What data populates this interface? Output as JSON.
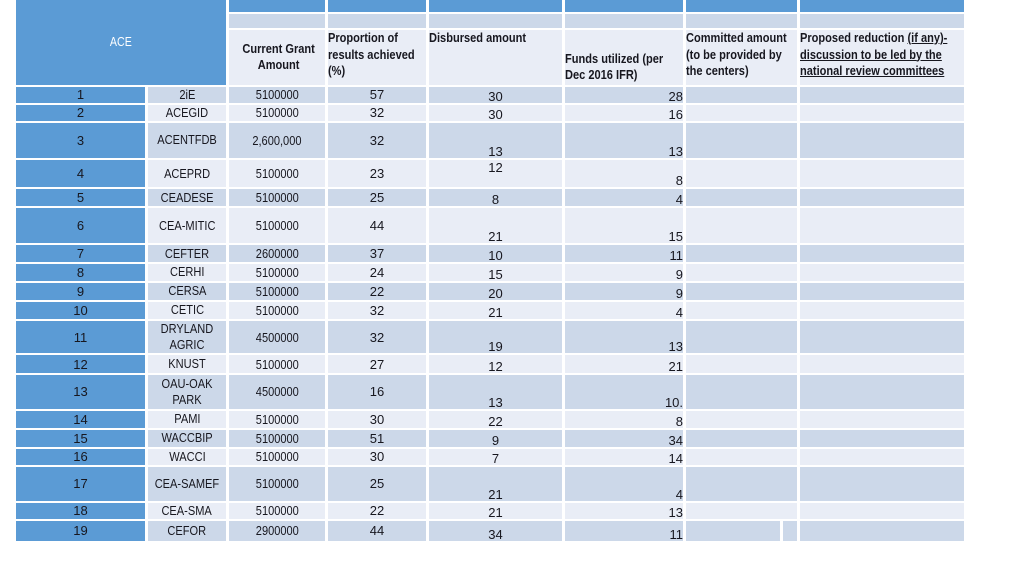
{
  "slide": {
    "background": "#ffffff"
  },
  "colors": {
    "accent_blue": "#5b9bd5",
    "band_dark": "#ccd8e9",
    "band_light": "#e9edf6",
    "border": "#ffffff",
    "text": "#17171f",
    "ace_header_text": "#ffffff"
  },
  "table": {
    "corner_header": "ACE",
    "headers": {
      "grant": "Current Grant\nAmount",
      "proportion": "Proportion of\nresults achieved\n(%)",
      "disbursed": "Disbursed amount",
      "funds": "Funds utilized (per\nDec 2016 IFR)",
      "committed": "Committed amount\n(to be provided by\nthe centers)",
      "proposed_plain": "Proposed reduction ",
      "proposed_underlined": "(if any)-\ndiscussion to be led by the\nnational review committees"
    },
    "rows": [
      {
        "num": "1",
        "num_bold": true,
        "name": "2iE",
        "grant": "5100000",
        "proportion": "57",
        "disbursed": "30",
        "disbursed_align": "bottom",
        "funds": "28",
        "funds_bold": true,
        "committed": "",
        "proposed": ""
      },
      {
        "num": "2",
        "num_bold": true,
        "name": "ACEGID",
        "grant": "5100000",
        "proportion": "32",
        "disbursed": "30",
        "disbursed_align": "bottom",
        "funds": "16",
        "funds_bold": true,
        "committed": "",
        "proposed": ""
      },
      {
        "num": "3",
        "num_bold": true,
        "name": "ACENTFDB",
        "grant": "2,600,000",
        "proportion": "32",
        "disbursed": "13",
        "disbursed_align": "bottom",
        "funds": "13",
        "funds_bold": true,
        "committed": "",
        "proposed": ""
      },
      {
        "num": "4",
        "num_bold": true,
        "name": "ACEPRD",
        "grant": "5100000",
        "proportion": "23",
        "disbursed": "12",
        "disbursed_align": "top",
        "funds": "8",
        "funds_bold": true,
        "committed": "",
        "proposed": ""
      },
      {
        "num": "5",
        "num_bold": true,
        "name": "CEADESE",
        "grant": "5100000",
        "proportion": "25",
        "disbursed": "8",
        "disbursed_align": "bottom",
        "funds": "4",
        "funds_bold": true,
        "committed": "",
        "proposed": ""
      },
      {
        "num": "6",
        "num_bold": true,
        "name": "CEA-MITIC",
        "grant": "5100000",
        "proportion": "44",
        "disbursed": "21",
        "disbursed_align": "bottom",
        "funds": "15",
        "funds_bold": true,
        "committed": "",
        "proposed": ""
      },
      {
        "num": "7",
        "num_bold": true,
        "name": "CEFTER",
        "grant": "2600000",
        "proportion": "37",
        "disbursed": "10",
        "disbursed_align": "bottom",
        "funds": "11",
        "funds_bold": true,
        "committed": "",
        "proposed": ""
      },
      {
        "num": "8",
        "num_bold": false,
        "name": "CERHI",
        "grant": "5100000",
        "proportion": "24",
        "disbursed": "15",
        "disbursed_align": "bottom",
        "funds": "9",
        "funds_bold": true,
        "committed": "",
        "proposed": ""
      },
      {
        "num": "9",
        "num_bold": false,
        "name": "CERSA",
        "grant": "5100000",
        "proportion": "22",
        "disbursed": "20",
        "disbursed_align": "bottom",
        "funds": "9",
        "funds_bold": true,
        "committed": "",
        "proposed": ""
      },
      {
        "num": "10",
        "num_bold": true,
        "name": "CETIC",
        "grant": "5100000",
        "proportion": "32",
        "disbursed": "21",
        "disbursed_align": "bottom",
        "funds": "4",
        "funds_bold": true,
        "committed": "",
        "proposed": ""
      },
      {
        "num": "11",
        "num_bold": true,
        "name": "DRYLAND\nAGRIC",
        "grant": "4500000",
        "proportion": "32",
        "disbursed": "19",
        "disbursed_align": "bottom",
        "funds": "13",
        "funds_bold": true,
        "committed": "",
        "proposed": ""
      },
      {
        "num": "12",
        "num_bold": false,
        "name": "KNUST",
        "grant": "5100000",
        "proportion": "27",
        "disbursed": "12",
        "disbursed_align": "bottom",
        "funds": "21",
        "funds_bold": true,
        "committed": "",
        "proposed": ""
      },
      {
        "num": "13",
        "num_bold": false,
        "name": "OAU-OAK\nPARK",
        "grant": "4500000",
        "proportion": "16",
        "disbursed": "13",
        "disbursed_align": "bottom",
        "funds": "10.",
        "funds_bold": true,
        "committed": "",
        "proposed": ""
      },
      {
        "num": "14",
        "num_bold": true,
        "name": "PAMI",
        "grant": "5100000",
        "proportion": "30",
        "disbursed": "22",
        "disbursed_align": "bottom",
        "funds": "8",
        "funds_bold": true,
        "committed": "",
        "proposed": ""
      },
      {
        "num": "15",
        "num_bold": true,
        "name": "WACCBIP",
        "grant": "5100000",
        "proportion": "51",
        "disbursed": "9",
        "disbursed_align": "bottom",
        "funds": "34",
        "funds_bold": false,
        "committed": "",
        "proposed": ""
      },
      {
        "num": "16",
        "num_bold": true,
        "name": "WACCI",
        "grant": "5100000",
        "proportion": "30",
        "disbursed": "7",
        "disbursed_align": "bottom",
        "funds": "14",
        "funds_bold": false,
        "committed": "",
        "proposed": ""
      },
      {
        "num": "17",
        "num_bold": false,
        "name": "CEA-SAMEF",
        "grant": "5100000",
        "proportion": "25",
        "disbursed": "21",
        "disbursed_align": "bottom",
        "funds": "4",
        "funds_bold": true,
        "committed": "",
        "proposed": ""
      },
      {
        "num": "18",
        "num_bold": false,
        "name": "CEA-SMA",
        "grant": "5100000",
        "proportion": "22",
        "disbursed": "21",
        "disbursed_align": "bottom",
        "funds": "13",
        "funds_bold": true,
        "committed": "",
        "proposed": ""
      },
      {
        "num": "19",
        "num_bold": true,
        "name": "CEFOR",
        "grant": "2900000",
        "proportion": "44",
        "disbursed": "34",
        "disbursed_align": "bottom",
        "funds": "11",
        "funds_bold": true,
        "committed": "",
        "proposed": "",
        "committed_split": true
      }
    ]
  }
}
